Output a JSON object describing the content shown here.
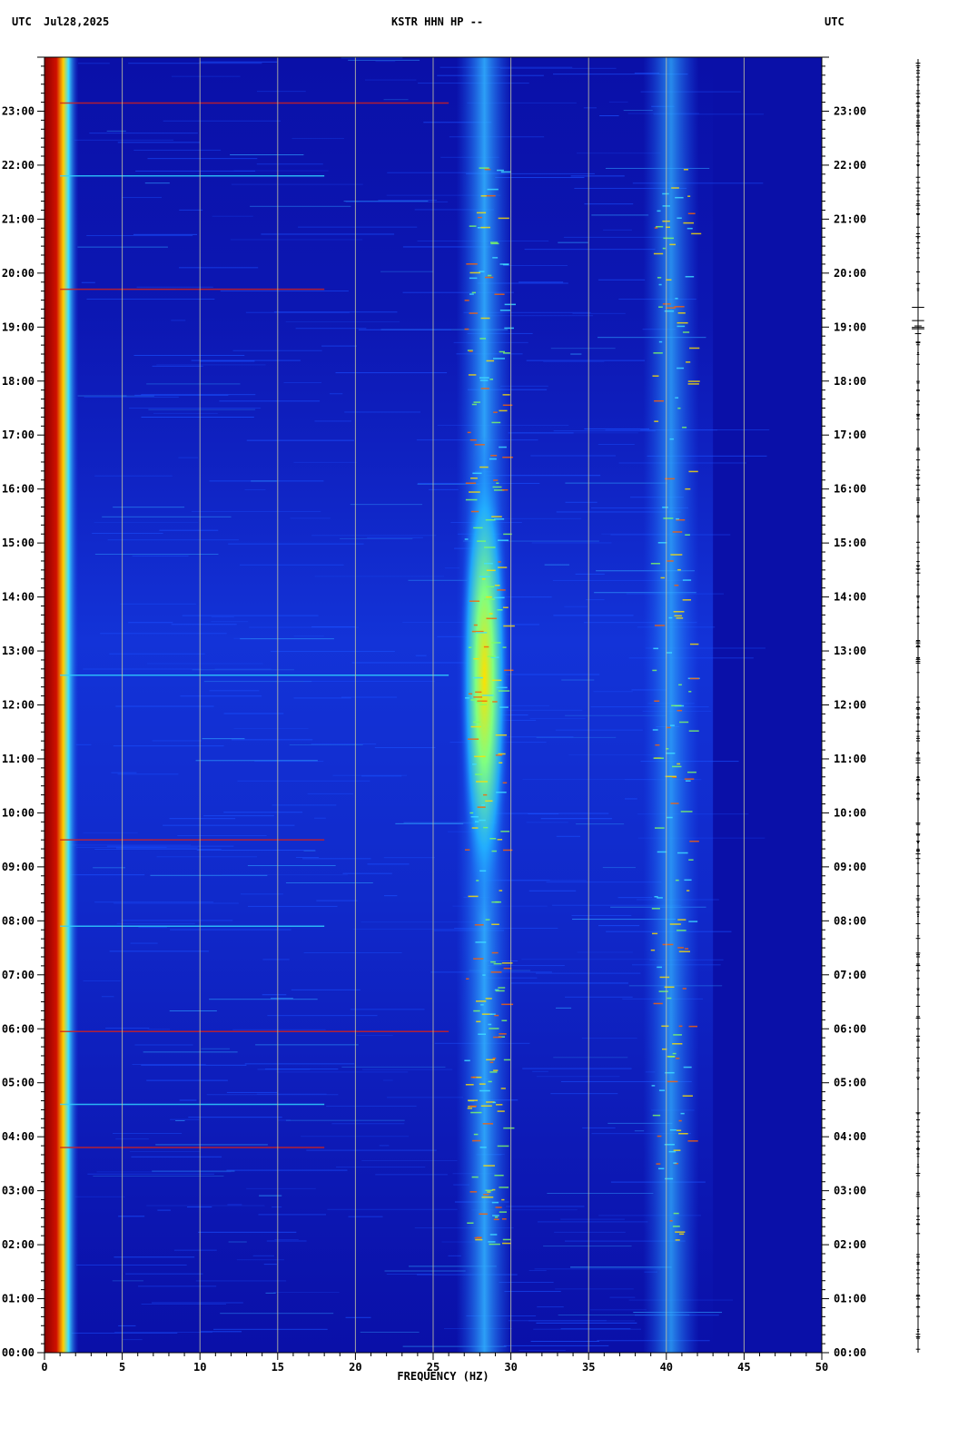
{
  "header": {
    "left_timezone": "UTC",
    "date": "Jul28,2025",
    "station": "KSTR HHN HP --",
    "right_timezone": "UTC"
  },
  "chart_data": {
    "type": "heatmap",
    "title": "KSTR HHN HP --",
    "xlabel": "FREQUENCY (HZ)",
    "ylabel": "UTC",
    "xlim": [
      0,
      50
    ],
    "x_ticks": [
      0,
      5,
      10,
      15,
      20,
      25,
      30,
      35,
      40,
      45,
      50
    ],
    "x_tick_labels": [
      "0",
      "5",
      "10",
      "15",
      "20",
      "25",
      "30",
      "35",
      "40",
      "45",
      "50"
    ],
    "ylim_hours": [
      0,
      24
    ],
    "y_ticks_hours": [
      0,
      1,
      2,
      3,
      4,
      5,
      6,
      7,
      8,
      9,
      10,
      11,
      12,
      13,
      14,
      15,
      16,
      17,
      18,
      19,
      20,
      21,
      22,
      23
    ],
    "y_tick_labels": [
      "00:00",
      "01:00",
      "02:00",
      "03:00",
      "04:00",
      "05:00",
      "06:00",
      "07:00",
      "08:00",
      "09:00",
      "10:00",
      "11:00",
      "12:00",
      "13:00",
      "14:00",
      "15:00",
      "16:00",
      "17:00",
      "18:00",
      "19:00",
      "20:00",
      "21:00",
      "22:00",
      "23:00"
    ],
    "grid_vertical": true,
    "colormap": [
      "#00008b",
      "#0000e6",
      "#1060ff",
      "#20c0ff",
      "#a0ff60",
      "#ffff00",
      "#ff4000",
      "#8b0000"
    ],
    "background_color": "#0a10a8",
    "persistent_bands_hz": [
      {
        "center": 0.8,
        "label": "low-frequency energy"
      },
      {
        "center": 28.3,
        "label": "band near 28 Hz"
      },
      {
        "center": 40.3,
        "label": "band near 40 Hz"
      }
    ],
    "broadband_events_hours": [
      23.15,
      21.8,
      19.7,
      12.55,
      9.5,
      7.9,
      5.95,
      4.6,
      3.8
    ]
  }
}
